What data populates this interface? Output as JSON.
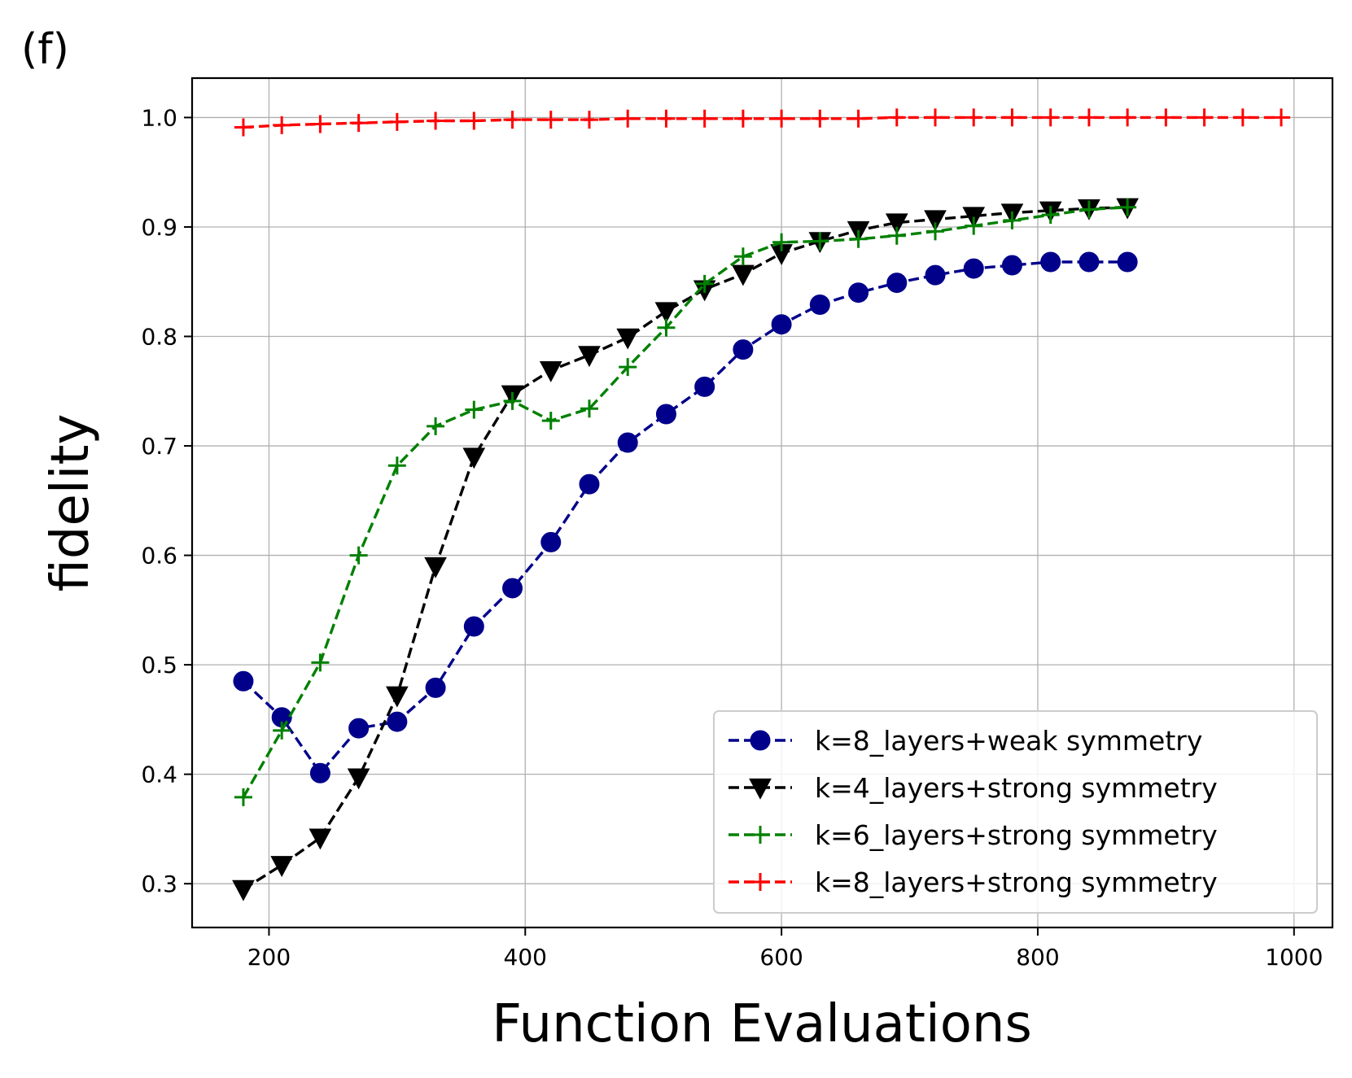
{
  "panel_label": "(f)",
  "chart_data": {
    "type": "line",
    "title": "",
    "xlabel": "Function Evaluations",
    "ylabel": "fidelity",
    "xlim": [
      140,
      1030
    ],
    "ylim": [
      0.26,
      1.036
    ],
    "xticks": [
      200,
      400,
      600,
      800,
      1000
    ],
    "yticks": [
      0.3,
      0.4,
      0.5,
      0.6,
      0.7,
      0.8,
      0.9,
      1.0
    ],
    "xtick_labels": [
      "200",
      "400",
      "600",
      "800",
      "1000"
    ],
    "ytick_labels": [
      "0.3",
      "0.4",
      "0.5",
      "0.6",
      "0.7",
      "0.8",
      "0.9",
      "1.0"
    ],
    "grid": true,
    "legend_position": "lower-right",
    "series": [
      {
        "name": "k=8_layers+weak symmetry",
        "color": "#00008b",
        "marker": "circle",
        "x": [
          180,
          210,
          240,
          270,
          300,
          330,
          360,
          390,
          420,
          450,
          480,
          510,
          540,
          570,
          600,
          630,
          660,
          690,
          720,
          750,
          780,
          810,
          840,
          870
        ],
        "y": [
          0.485,
          0.452,
          0.401,
          0.442,
          0.448,
          0.479,
          0.535,
          0.57,
          0.612,
          0.665,
          0.703,
          0.729,
          0.754,
          0.788,
          0.811,
          0.829,
          0.84,
          0.849,
          0.856,
          0.862,
          0.865,
          0.868,
          0.868,
          0.868
        ]
      },
      {
        "name": "k=4_layers+strong symmetry",
        "color": "#000000",
        "marker": "triangle-down",
        "x": [
          180,
          210,
          240,
          270,
          300,
          330,
          360,
          390,
          420,
          450,
          480,
          510,
          540,
          570,
          600,
          630,
          660,
          690,
          720,
          750,
          780,
          810,
          840,
          870
        ],
        "y": [
          0.295,
          0.317,
          0.342,
          0.397,
          0.472,
          0.59,
          0.69,
          0.747,
          0.769,
          0.783,
          0.799,
          0.823,
          0.843,
          0.857,
          0.876,
          0.887,
          0.897,
          0.904,
          0.907,
          0.91,
          0.913,
          0.915,
          0.917,
          0.918
        ]
      },
      {
        "name": "k=6_layers+strong symmetry",
        "color": "#008000",
        "marker": "plus",
        "x": [
          180,
          210,
          240,
          270,
          300,
          330,
          360,
          390,
          420,
          450,
          480,
          510,
          540,
          570,
          600,
          630,
          660,
          690,
          720,
          750,
          780,
          810,
          840,
          870
        ],
        "y": [
          0.379,
          0.44,
          0.502,
          0.6,
          0.682,
          0.718,
          0.733,
          0.741,
          0.723,
          0.734,
          0.772,
          0.808,
          0.848,
          0.873,
          0.886,
          0.887,
          0.889,
          0.892,
          0.896,
          0.901,
          0.906,
          0.911,
          0.916,
          0.918
        ]
      },
      {
        "name": "k=8_layers+strong symmetry",
        "color": "#ff0000",
        "marker": "plus",
        "x": [
          180,
          210,
          240,
          270,
          300,
          330,
          360,
          390,
          420,
          450,
          480,
          510,
          540,
          570,
          600,
          630,
          660,
          690,
          720,
          750,
          780,
          810,
          840,
          870,
          900,
          930,
          960,
          990
        ],
        "y": [
          0.991,
          0.993,
          0.994,
          0.995,
          0.996,
          0.997,
          0.997,
          0.998,
          0.998,
          0.998,
          0.999,
          0.999,
          0.999,
          0.999,
          0.999,
          0.999,
          0.999,
          1.0,
          1.0,
          1.0,
          1.0,
          1.0,
          1.0,
          1.0,
          1.0,
          1.0,
          1.0,
          1.0
        ]
      }
    ]
  }
}
